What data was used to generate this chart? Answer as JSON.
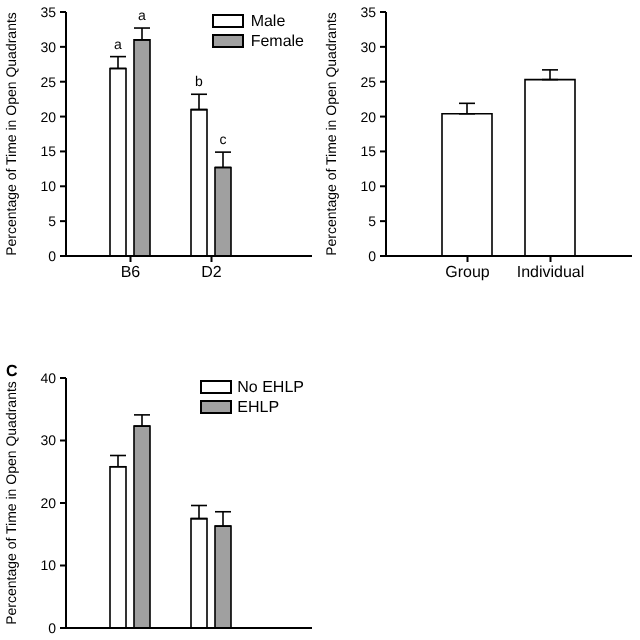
{
  "chart_data": [
    {
      "type": "bar",
      "ylabel": "Percentage of Time in Open Quadrants",
      "categories": [
        "B6",
        "D2"
      ],
      "series": [
        {
          "name": "Male",
          "color": "#ffffff",
          "values": [
            26.9,
            21.0
          ],
          "errors": [
            [
              26.9,
              28.6
            ],
            [
              21.0,
              23.2
            ]
          ]
        },
        {
          "name": "Female",
          "color": "#a0a0a0",
          "values": [
            31.0,
            12.7
          ],
          "errors": [
            [
              31.0,
              32.7
            ],
            [
              12.7,
              14.9
            ]
          ]
        }
      ],
      "ylim": [
        0,
        35
      ],
      "yticks": [
        0,
        5,
        10,
        15,
        20,
        25,
        30,
        35
      ],
      "legend": "top right",
      "grid": false,
      "annotations": [
        {
          "text": "a",
          "x": "B6",
          "y": 28.6
        },
        {
          "text": "a",
          "x": "B6",
          "y": 32.7
        },
        {
          "text": "b",
          "x": "D2",
          "y": 23.2
        },
        {
          "text": "c",
          "x": "D2",
          "y": 14.9
        }
      ]
    },
    {
      "type": "bar",
      "ylabel": "Percentage of Time in Open Quadrants",
      "categories": [
        "Group",
        "Individual"
      ],
      "series": [
        {
          "color": "#ffffff",
          "values": [
            20.4,
            25.3
          ],
          "errors": [
            [
              20.4,
              21.9
            ],
            [
              25.3,
              26.7
            ]
          ]
        }
      ],
      "ylim": [
        0,
        35
      ],
      "yticks": [
        0,
        5,
        10,
        15,
        20,
        25,
        30,
        35
      ],
      "legend": false,
      "grid": false
    },
    {
      "type": "bar",
      "ylabel": "Percentage of Time in Open Quadrants",
      "categories": [
        null,
        null
      ],
      "series": [
        {
          "name": "No EHLP",
          "color": "#ffffff",
          "values": [
            25.8,
            17.5
          ],
          "errors": [
            [
              25.8,
              27.6
            ],
            [
              17.5,
              19.6
            ]
          ]
        },
        {
          "name": "EHLP",
          "color": "#a0a0a0",
          "values": [
            32.3,
            16.3
          ],
          "errors": [
            [
              32.3,
              34.1
            ],
            [
              16.3,
              18.6
            ]
          ]
        }
      ],
      "ylim": [
        0,
        40
      ],
      "yticks": [
        0,
        10,
        20,
        30,
        40
      ],
      "legend": "top right",
      "grid": false,
      "tick_labels": "y",
      "annotations": [
        "C"
      ]
    }
  ]
}
